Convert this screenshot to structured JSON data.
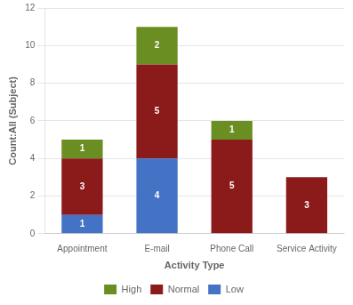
{
  "chart_data": {
    "type": "bar",
    "stacked": true,
    "categories": [
      "Appointment",
      "E-mail",
      "Phone Call",
      "Service Activity"
    ],
    "series": [
      {
        "name": "Low",
        "color": "#4472c4",
        "values": [
          1,
          4,
          0,
          0
        ]
      },
      {
        "name": "Normal",
        "color": "#8B1A1A",
        "values": [
          3,
          5,
          5,
          3
        ]
      },
      {
        "name": "High",
        "color": "#6B8E23",
        "values": [
          1,
          2,
          1,
          0
        ]
      }
    ],
    "xlabel": "Activity Type",
    "ylabel": "Count:All (Subject)",
    "ylim": [
      0,
      12
    ],
    "yticks": [
      0,
      2,
      4,
      6,
      8,
      10,
      12
    ],
    "grid": true,
    "legend": "bottom",
    "data_labels": true
  }
}
